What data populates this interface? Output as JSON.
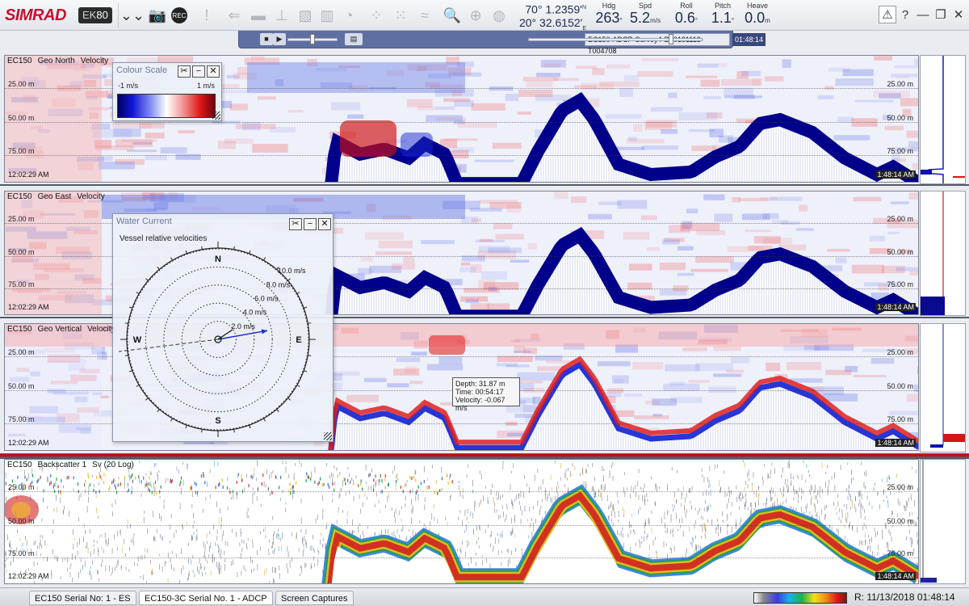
{
  "app": {
    "brand": "SIMRAD",
    "model_prefix": "EK",
    "model_suffix": "80"
  },
  "toolbar": {
    "buttons": [
      {
        "name": "collapse-menu-icon",
        "glyph": "⌄⌄"
      },
      {
        "name": "camera-icon",
        "glyph": "📷"
      },
      {
        "name": "record-icon",
        "glyph": "REC"
      },
      {
        "name": "alert-icon",
        "glyph": "!"
      },
      {
        "name": "arrow-left-icon",
        "glyph": "⇐"
      },
      {
        "name": "color-palette-icon",
        "glyph": "▬"
      },
      {
        "name": "depth-marker-icon",
        "glyph": "⊥"
      },
      {
        "name": "layer-icon",
        "glyph": "▧"
      },
      {
        "name": "bar-chart-icon",
        "glyph": "▥"
      },
      {
        "name": "pie-icon",
        "glyph": "◔"
      },
      {
        "name": "grid-icon",
        "glyph": "⁘"
      },
      {
        "name": "scatter-icon",
        "glyph": "⁙"
      },
      {
        "name": "wave-icon",
        "glyph": "≈"
      },
      {
        "name": "zoom-icon",
        "glyph": "🔍"
      },
      {
        "name": "compass-icon",
        "glyph": "⊕"
      },
      {
        "name": "target-icon",
        "glyph": "◍"
      }
    ],
    "position": {
      "lat_deg": "70°",
      "lat_min": "1.2359'",
      "lat_hem": "N",
      "lon_deg": "20°",
      "lon_min": "32.6152'",
      "lon_hem": "E"
    },
    "stats": [
      {
        "label": "Hdg",
        "value": "263",
        "unit": "°"
      },
      {
        "label": "Spd",
        "value": "5.2",
        "unit": "m/s"
      },
      {
        "label": "Roll",
        "value": "0.6",
        "unit": "°"
      },
      {
        "label": "Pitch",
        "value": "1.1",
        "unit": "°"
      },
      {
        "label": "Heave",
        "value": "0.0",
        "unit": "m"
      }
    ],
    "window_buttons": [
      "⚠",
      "?",
      "—",
      "❐",
      "✕"
    ]
  },
  "playback": {
    "file_name": "EC150-ADCP-Survey4-D20181113-T004708",
    "time": "01:48:14",
    "position_fraction": 0.82
  },
  "panels": [
    {
      "title_parts": [
        "EC150",
        "Geo North",
        "Velocity"
      ],
      "time_start": "12:02:29 AM",
      "time_end": "1:48:14 AM",
      "depths": [
        "25.00 m",
        "50.00 m",
        "75.00 m"
      ]
    },
    {
      "title_parts": [
        "EC150",
        "Geo East",
        "Velocity"
      ],
      "time_start": "12:02:29 AM",
      "time_end": "1:48:14 AM",
      "depths": [
        "25.00 m",
        "50.00 m",
        "75.00 m"
      ]
    },
    {
      "title_parts": [
        "EC150",
        "Geo Vertical",
        "Velocity"
      ],
      "time_start": "12:02:29 AM",
      "time_end": "1:48:14 AM",
      "depths": [
        "25.00 m",
        "50.00 m",
        "75.00 m"
      ]
    },
    {
      "title_parts": [
        "EC150",
        "Backscatter 1",
        "Sv (20 Log)"
      ],
      "time_start": "12:02:29 AM",
      "time_end": "1:48:14 AM",
      "depths": [
        "25.00 m",
        "50.00 m",
        "75.00 m"
      ]
    }
  ],
  "colour_scale": {
    "title": "Colour Scale",
    "min_label": "-1 m/s",
    "max_label": "1 m/s"
  },
  "water_current": {
    "title": "Water Current",
    "subtitle": "Vessel relative velocities",
    "directions": [
      "N",
      "E",
      "S",
      "W"
    ],
    "rings": [
      "2.0 m/s",
      "4.0 m/s",
      "6.0 m/s",
      "8.0 m/s",
      "10.0 m/s"
    ],
    "vessel_heading_deg": 263,
    "current_arrow_deg": 80
  },
  "tooltip": {
    "depth": "Depth: 31.87 m",
    "time": "Time: 00:54:17",
    "velocity": "Velocity: -0.067 m/s"
  },
  "statusbar": {
    "tabs": [
      {
        "label": "EC150 Serial No: 1 - ES",
        "active": false
      },
      {
        "label": "EC150-3C Serial No. 1 - ADCP",
        "active": true
      },
      {
        "label": "Screen Captures",
        "active": false
      }
    ],
    "date_time": "R: 11/13/2018  01:48:14"
  },
  "colors": {
    "accent_red": "#c8102e",
    "velocity_negative": "#0a14c0",
    "velocity_positive": "#e01818",
    "bottom_echo": "#000080",
    "playbar": "#5e6fa1"
  }
}
